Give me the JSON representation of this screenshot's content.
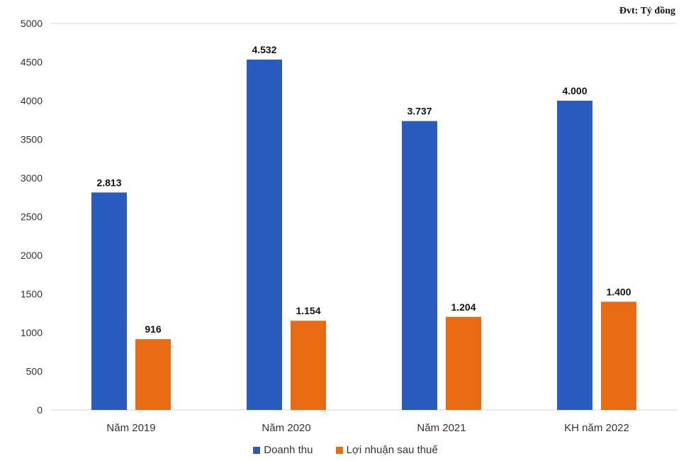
{
  "chart_data": {
    "type": "bar",
    "unit_note": "Đvt: Tỷ đồng",
    "categories": [
      "Năm 2019",
      "Năm 2020",
      "Năm 2021",
      "KH năm 2022"
    ],
    "series": [
      {
        "name": "Doanh thu",
        "color": "#2a5cbf",
        "values": [
          2813,
          4532,
          3737,
          4000
        ],
        "labels": [
          "2.813",
          "4.532",
          "3.737",
          "4.000"
        ]
      },
      {
        "name": "Lợi nhuận sau thuế",
        "color": "#e86b14",
        "values": [
          916,
          1154,
          1204,
          1400
        ],
        "labels": [
          "916",
          "1.154",
          "1.204",
          "1.400"
        ]
      }
    ],
    "ylim": [
      0,
      5000
    ],
    "yticks": [
      0,
      500,
      1000,
      1500,
      2000,
      2500,
      3000,
      3500,
      4000,
      4500,
      5000
    ],
    "legend": "bottom",
    "grid": false
  }
}
